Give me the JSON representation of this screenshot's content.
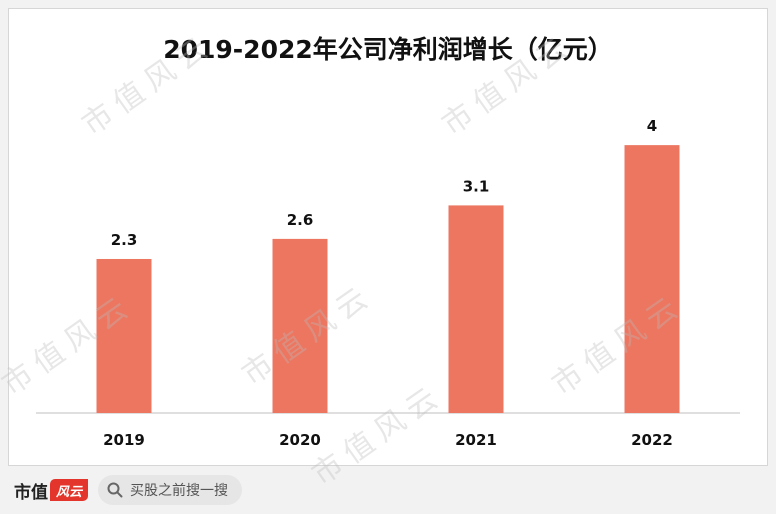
{
  "chart_data": {
    "type": "bar",
    "title": "2019-2022年公司净利润增长（亿元）",
    "categories": [
      "2019",
      "2020",
      "2021",
      "2022"
    ],
    "values": [
      2.3,
      2.6,
      3.1,
      4
    ],
    "data_labels": [
      "2.3",
      "2.6",
      "3.1",
      "4"
    ],
    "ylim": [
      0,
      4.45
    ],
    "grid": false,
    "legend": "none",
    "bar_color": "#ec7660"
  },
  "watermark": {
    "text": "市值风云"
  },
  "footer": {
    "brand_text": "市值",
    "brand_badge": "风云",
    "search_text": "买股之前搜一搜"
  }
}
